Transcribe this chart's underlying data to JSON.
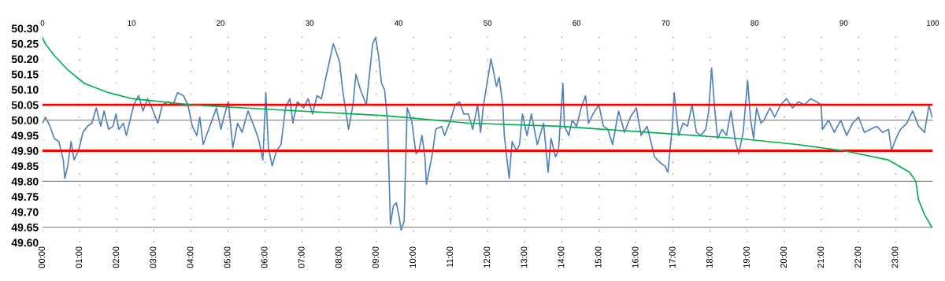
{
  "chart_data": {
    "type": "line",
    "xlim": [
      0,
      24
    ],
    "xticks": [
      {
        "value": 0,
        "label": "00:00"
      },
      {
        "value": 1,
        "label": "01:00"
      },
      {
        "value": 2,
        "label": "02:00"
      },
      {
        "value": 3,
        "label": "03:00"
      },
      {
        "value": 4,
        "label": "04:00"
      },
      {
        "value": 5,
        "label": "05:00"
      },
      {
        "value": 6,
        "label": "06:00"
      },
      {
        "value": 7,
        "label": "07:00"
      },
      {
        "value": 8,
        "label": "08:00"
      },
      {
        "value": 9,
        "label": "09:00"
      },
      {
        "value": 10,
        "label": "10:00"
      },
      {
        "value": 11,
        "label": "11:00"
      },
      {
        "value": 12,
        "label": "12:00"
      },
      {
        "value": 13,
        "label": "13:00"
      },
      {
        "value": 14,
        "label": "14:00"
      },
      {
        "value": 15,
        "label": "15:00"
      },
      {
        "value": 16,
        "label": "16:00"
      },
      {
        "value": 17,
        "label": "17:00"
      },
      {
        "value": 18,
        "label": "18:00"
      },
      {
        "value": 19,
        "label": "19:00"
      },
      {
        "value": 20,
        "label": "20:00"
      },
      {
        "value": 21,
        "label": "21:00"
      },
      {
        "value": 22,
        "label": "22:00"
      },
      {
        "value": 23,
        "label": "23:00"
      }
    ],
    "x2lim": [
      0,
      100
    ],
    "x2ticks": [
      0,
      10,
      20,
      30,
      40,
      50,
      60,
      70,
      80,
      90,
      100
    ],
    "ylim": [
      49.6,
      50.3
    ],
    "yticks": [
      {
        "value": 49.6,
        "label": "49.60"
      },
      {
        "value": 49.65,
        "label": "49.65"
      },
      {
        "value": 49.7,
        "label": "49.70"
      },
      {
        "value": 49.75,
        "label": "49.75"
      },
      {
        "value": 49.8,
        "label": "49.80"
      },
      {
        "value": 49.85,
        "label": "49.85"
      },
      {
        "value": 49.9,
        "label": "49.90"
      },
      {
        "value": 49.95,
        "label": "49.95"
      },
      {
        "value": 50.0,
        "label": "50.00"
      },
      {
        "value": 50.05,
        "label": "50.05"
      },
      {
        "value": 50.1,
        "label": "50.10"
      },
      {
        "value": 50.15,
        "label": "50.15"
      },
      {
        "value": 50.2,
        "label": "50.20"
      },
      {
        "value": 50.25,
        "label": "50.25"
      },
      {
        "value": 50.3,
        "label": "50.30"
      }
    ],
    "grid": "x",
    "marker": "none",
    "line_style": "solid",
    "ref_lines": [
      {
        "axis": "y",
        "value": 50.0,
        "color": "#8c8c8c"
      },
      {
        "axis": "y",
        "value": 49.8,
        "color": "#8c8c8c"
      },
      {
        "axis": "y",
        "value": 49.65,
        "color": "#8c8c8c"
      },
      {
        "axis": "y",
        "value": 50.05,
        "color": "#ff0000"
      },
      {
        "axis": "y",
        "value": 49.9,
        "color": "#ff0000"
      }
    ],
    "series": [
      {
        "color": "#4f81bd",
        "x": [
          0.0,
          0.08,
          0.2,
          0.32,
          0.44,
          0.56,
          0.6,
          0.68,
          0.77,
          0.85,
          0.97,
          1.09,
          1.21,
          1.33,
          1.45,
          1.57,
          1.66,
          1.78,
          1.9,
          1.98,
          2.06,
          2.18,
          2.26,
          2.38,
          2.46,
          2.59,
          2.71,
          2.83,
          2.95,
          3.11,
          3.23,
          3.39,
          3.52,
          3.64,
          3.8,
          3.92,
          4.04,
          4.16,
          4.24,
          4.33,
          4.45,
          4.57,
          4.69,
          4.81,
          4.89,
          5.01,
          5.13,
          5.26,
          5.38,
          5.54,
          5.7,
          5.82,
          5.94,
          6.02,
          6.09,
          6.19,
          6.31,
          6.43,
          6.55,
          6.67,
          6.75,
          6.87,
          7.04,
          7.16,
          7.28,
          7.4,
          7.52,
          7.64,
          7.84,
          8.01,
          8.09,
          8.25,
          8.37,
          8.45,
          8.57,
          8.73,
          8.9,
          8.98,
          9.06,
          9.14,
          9.22,
          9.3,
          9.38,
          9.46,
          9.54,
          9.62,
          9.67,
          9.75,
          9.83,
          9.95,
          10.07,
          10.15,
          10.23,
          10.31,
          10.35,
          10.51,
          10.6,
          10.76,
          10.84,
          11.0,
          11.12,
          11.24,
          11.36,
          11.48,
          11.6,
          11.73,
          11.81,
          11.89,
          11.97,
          12.09,
          12.24,
          12.31,
          12.41,
          12.45,
          12.58,
          12.66,
          12.78,
          12.86,
          12.94,
          13.06,
          13.18,
          13.34,
          13.51,
          13.63,
          13.71,
          13.83,
          13.91,
          14.03,
          14.07,
          14.19,
          14.28,
          14.4,
          14.52,
          14.64,
          14.72,
          14.84,
          15.0,
          15.12,
          15.24,
          15.37,
          15.53,
          15.69,
          15.85,
          16.01,
          16.14,
          16.3,
          16.42,
          16.5,
          16.66,
          16.78,
          16.86,
          16.98,
          17.03,
          17.15,
          17.27,
          17.39,
          17.51,
          17.63,
          17.75,
          17.88,
          17.96,
          18.04,
          18.12,
          18.2,
          18.32,
          18.44,
          18.56,
          18.68,
          18.77,
          18.89,
          19.01,
          19.09,
          19.17,
          19.25,
          19.37,
          19.45,
          19.61,
          19.74,
          19.9,
          20.06,
          20.22,
          20.38,
          20.54,
          20.71,
          20.87,
          20.99,
          21.03,
          21.19,
          21.35,
          21.52,
          21.68,
          21.84,
          22.0,
          22.16,
          22.32,
          22.49,
          22.65,
          22.81,
          22.89,
          23.01,
          23.13,
          23.3,
          23.46,
          23.62,
          23.78,
          23.9,
          23.98
        ],
        "values": [
          49.99,
          50.01,
          49.98,
          49.94,
          49.93,
          49.87,
          49.81,
          49.85,
          49.93,
          49.87,
          49.9,
          49.96,
          49.98,
          49.99,
          50.04,
          49.98,
          50.03,
          49.97,
          49.98,
          50.02,
          49.97,
          49.99,
          49.95,
          50.01,
          50.05,
          50.08,
          50.03,
          50.07,
          50.04,
          49.99,
          50.05,
          50.06,
          50.05,
          50.09,
          50.08,
          50.05,
          49.98,
          49.95,
          50.01,
          49.92,
          49.96,
          50.0,
          50.04,
          49.97,
          50.01,
          50.06,
          49.91,
          49.99,
          49.96,
          50.03,
          49.98,
          49.94,
          49.87,
          50.09,
          49.91,
          49.85,
          49.9,
          49.92,
          50.04,
          50.07,
          49.99,
          50.06,
          50.04,
          50.07,
          50.02,
          50.08,
          50.07,
          50.14,
          50.25,
          50.19,
          50.1,
          49.97,
          50.05,
          50.15,
          50.1,
          50.05,
          50.25,
          50.27,
          50.21,
          50.12,
          50.1,
          50.0,
          49.66,
          49.72,
          49.73,
          49.68,
          49.64,
          49.67,
          50.04,
          50.0,
          49.89,
          49.9,
          49.95,
          49.88,
          49.79,
          49.89,
          49.97,
          49.98,
          49.95,
          50.0,
          50.05,
          50.06,
          50.02,
          50.02,
          49.97,
          50.05,
          49.96,
          50.05,
          50.11,
          50.2,
          50.11,
          50.14,
          50.05,
          49.95,
          49.81,
          49.93,
          49.9,
          49.92,
          50.02,
          49.95,
          50.02,
          49.92,
          49.99,
          49.83,
          49.94,
          49.88,
          49.9,
          50.12,
          49.98,
          49.95,
          50.0,
          49.98,
          50.04,
          50.08,
          49.99,
          50.02,
          50.05,
          49.98,
          49.97,
          49.92,
          50.03,
          49.96,
          50.01,
          50.04,
          49.95,
          49.98,
          49.92,
          49.88,
          49.86,
          49.85,
          49.83,
          49.98,
          50.09,
          49.95,
          49.99,
          49.98,
          50.05,
          49.96,
          49.95,
          49.97,
          50.03,
          50.17,
          50.04,
          49.94,
          49.97,
          49.95,
          50.03,
          49.93,
          49.89,
          49.96,
          50.13,
          50.0,
          49.94,
          50.04,
          49.99,
          50.0,
          50.04,
          50.01,
          50.05,
          50.07,
          50.04,
          50.06,
          50.05,
          50.07,
          50.06,
          50.05,
          49.97,
          50.0,
          49.96,
          50.0,
          49.95,
          49.99,
          50.01,
          49.96,
          49.97,
          49.98,
          49.96,
          49.97,
          49.9,
          49.94,
          49.97,
          49.99,
          50.03,
          49.98,
          49.96,
          50.05,
          50.01
        ]
      },
      {
        "color": "#00b050",
        "axis": "x2",
        "x": [
          0,
          0.3,
          1.35,
          3.0,
          4.7,
          7.4,
          10.1,
          16.8,
          25.6,
          38.4,
          47.9,
          58.0,
          68.1,
          78.2,
          84.9,
          90.0,
          95.0,
          97.4,
          98.1,
          98.4,
          99.1,
          99.9
        ],
        "values": [
          50.27,
          50.25,
          50.21,
          50.16,
          50.12,
          50.09,
          50.07,
          50.05,
          50.035,
          50.015,
          49.99,
          49.98,
          49.96,
          49.94,
          49.92,
          49.9,
          49.87,
          49.83,
          49.8,
          49.74,
          49.69,
          49.65
        ]
      }
    ]
  }
}
